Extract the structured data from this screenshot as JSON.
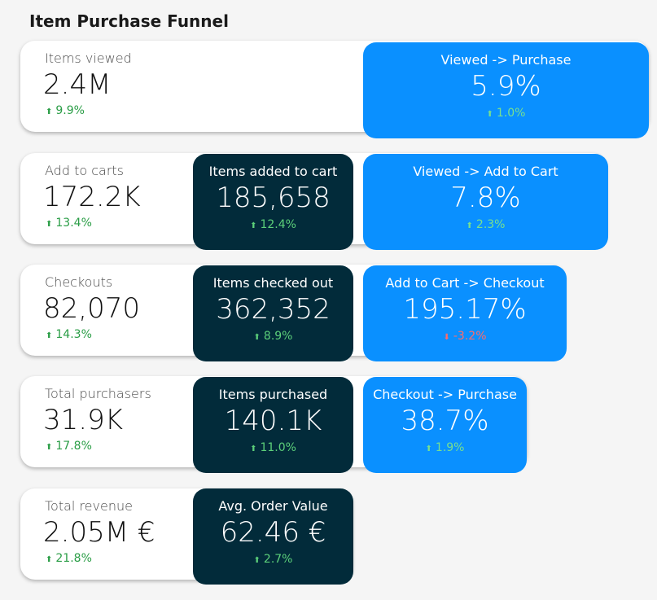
{
  "title": "Item Purchase Funnel",
  "rows": [
    {
      "label": "Items viewed",
      "value": "2.4M",
      "delta": "9.9%",
      "delta_dir": "up",
      "conversion": {
        "label": "Viewed -> Purchase",
        "value": "5.9%",
        "delta": "1.0%",
        "delta_dir": "up"
      }
    },
    {
      "label": "Add to carts",
      "value": "172.2K",
      "delta": "13.4%",
      "delta_dir": "up",
      "items": {
        "label": "Items added to cart",
        "value": "185,658",
        "delta": "12.4%",
        "delta_dir": "up"
      },
      "conversion": {
        "label": "Viewed -> Add to Cart",
        "value": "7.8%",
        "delta": "2.3%",
        "delta_dir": "up"
      }
    },
    {
      "label": "Checkouts",
      "value": "82,070",
      "delta": "14.3%",
      "delta_dir": "up",
      "items": {
        "label": "Items checked out",
        "value": "362,352",
        "delta": "8.9%",
        "delta_dir": "up"
      },
      "conversion": {
        "label": "Add to Cart -> Checkout",
        "value": "195.17%",
        "delta": "-3.2%",
        "delta_dir": "down"
      }
    },
    {
      "label": "Total purchasers",
      "value": "31.9K",
      "delta": "17.8%",
      "delta_dir": "up",
      "items": {
        "label": "Items purchased",
        "value": "140.1K",
        "delta": "11.0%",
        "delta_dir": "up"
      },
      "conversion": {
        "label": "Checkout -> Purchase",
        "value": "38.7%",
        "delta": "1.9%",
        "delta_dir": "up"
      }
    },
    {
      "label": "Total revenue",
      "value": "2.05M €",
      "delta": "21.8%",
      "delta_dir": "up",
      "items": {
        "label": "Avg. Order Value",
        "value": "62.46 €",
        "delta": "2.7%",
        "delta_dir": "up"
      }
    }
  ],
  "icons": {
    "up": "arrow-up-icon",
    "down": "arrow-down-icon"
  },
  "colors": {
    "dark_card": "#022b3a",
    "blue_card": "#0a90ff",
    "positive": "#2a9d46",
    "negative": "#e05555"
  }
}
